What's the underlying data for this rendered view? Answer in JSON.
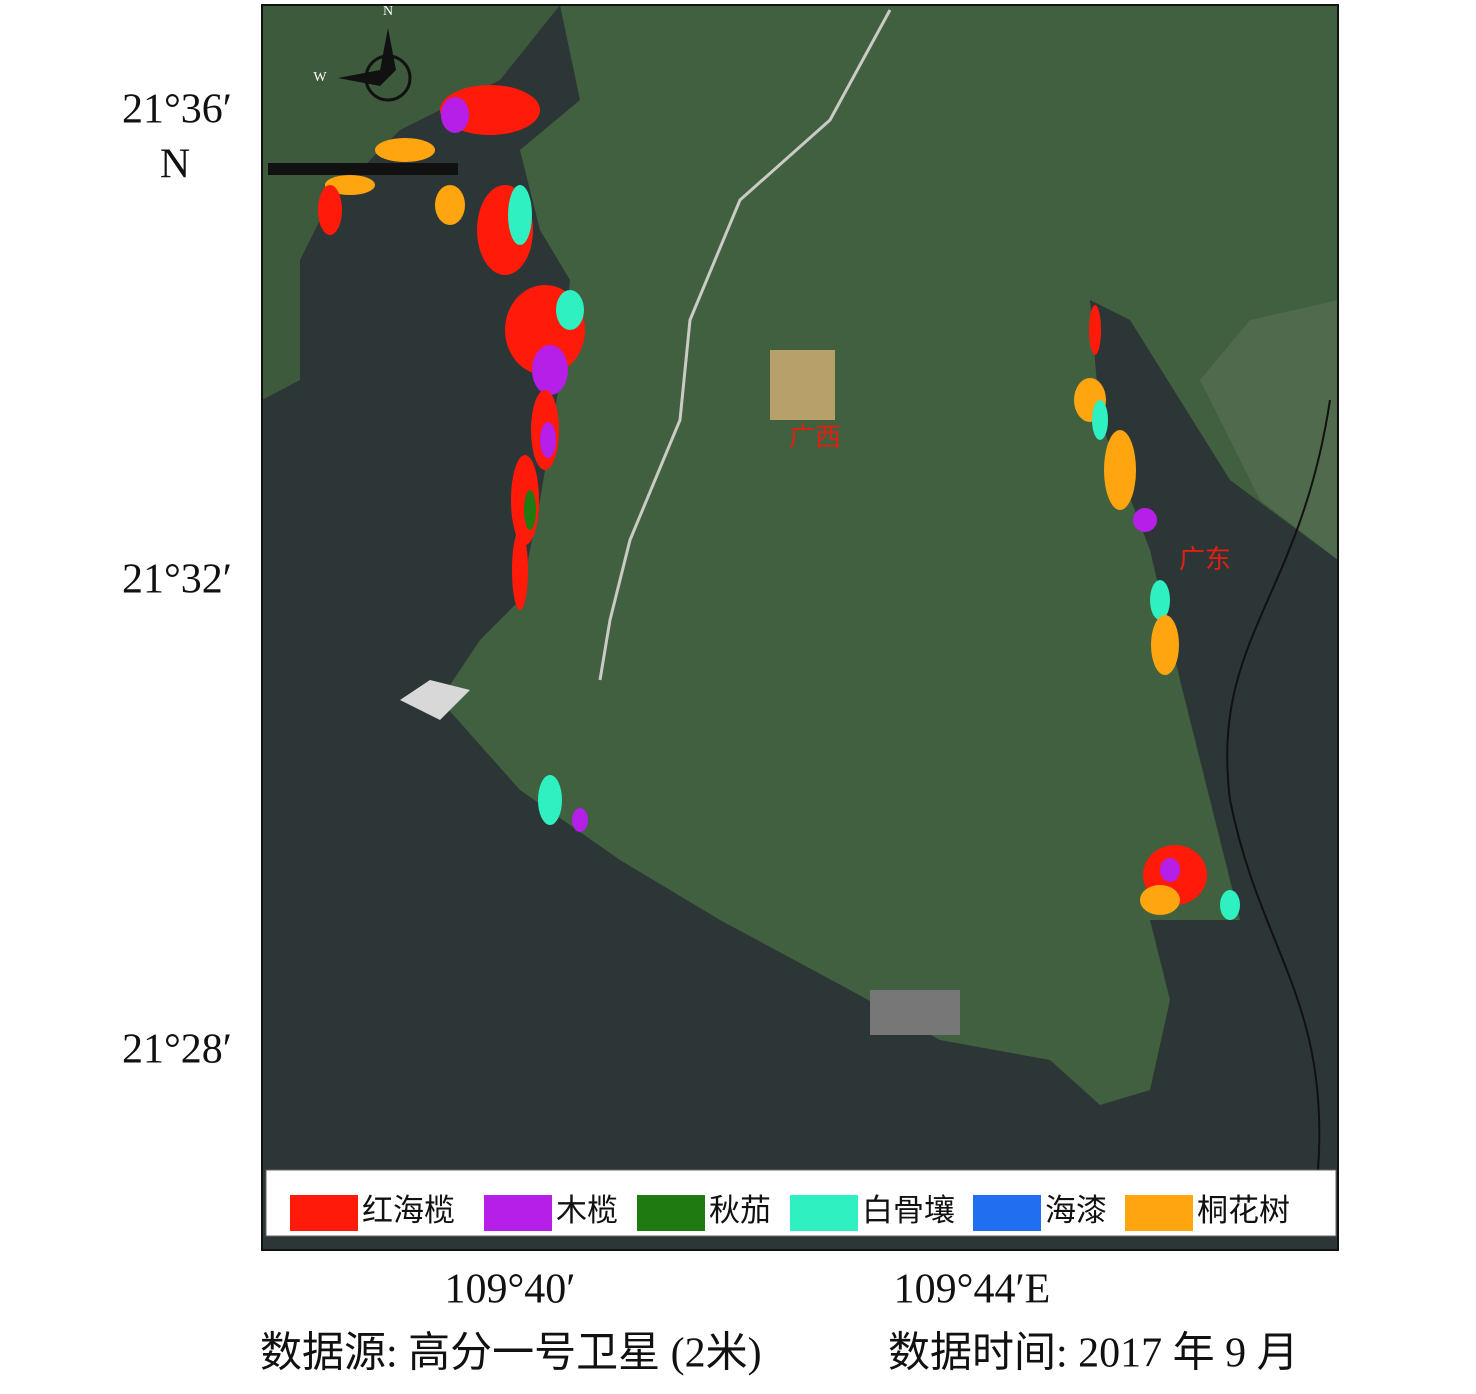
{
  "map": {
    "lat_labels": [
      "21°36′",
      "21°32′",
      "21°28′"
    ],
    "lat_suffix": "N",
    "lon_labels": [
      "109°40′",
      "109°44′E"
    ],
    "region_labels": [
      "广西",
      "广东"
    ],
    "compass": {
      "north": "N",
      "west": "W"
    },
    "legend": [
      {
        "name": "红海榄",
        "color": "#ff1a0a"
      },
      {
        "name": "木榄",
        "color": "#b51fe8"
      },
      {
        "name": "秋茄",
        "color": "#1f7a12"
      },
      {
        "name": "白骨壤",
        "color": "#2ef0c0"
      },
      {
        "name": "海漆",
        "color": "#1f6ff0"
      },
      {
        "name": "桐花树",
        "color": "#ffa510"
      }
    ],
    "caption": {
      "source": "数据源: 高分一号卫星 (2米)",
      "time": "数据时间: 2017 年 9 月"
    }
  }
}
